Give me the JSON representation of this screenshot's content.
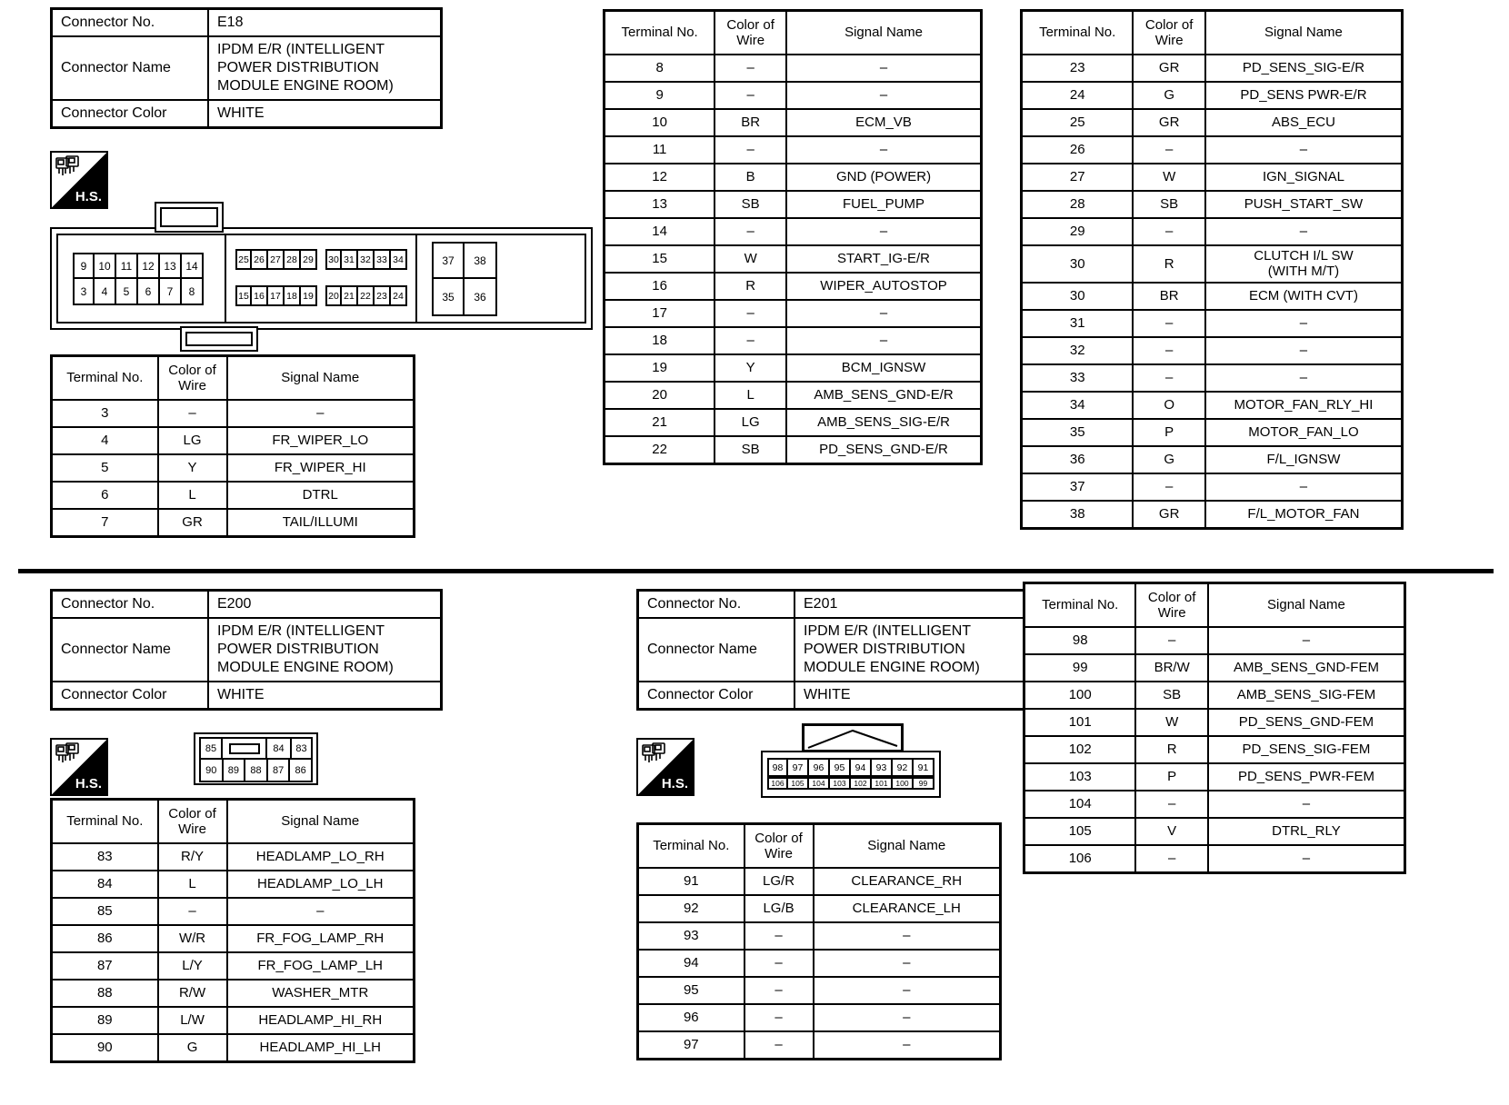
{
  "hs_label": "H.S.",
  "e18": {
    "info": [
      {
        "label": "Connector No.",
        "value": "E18"
      },
      {
        "label": "Connector Name",
        "value": "IPDM E/R (INTELLIGENT\nPOWER DISTRIBUTION\nMODULE ENGINE ROOM)"
      },
      {
        "label": "Connector Color",
        "value": "WHITE"
      }
    ],
    "pins": {
      "left_row1": [
        "9",
        "10",
        "11",
        "12",
        "13",
        "14"
      ],
      "left_row2": [
        "3",
        "4",
        "5",
        "6",
        "7",
        "8"
      ],
      "mid_top_a": [
        "25",
        "26",
        "27",
        "28",
        "29"
      ],
      "mid_top_b": [
        "30",
        "31",
        "32",
        "33",
        "34"
      ],
      "mid_bot_a": [
        "15",
        "16",
        "17",
        "18",
        "19"
      ],
      "mid_bot_b": [
        "20",
        "21",
        "22",
        "23",
        "24"
      ],
      "right_row1": [
        "37",
        "38"
      ],
      "right_row2": [
        "35",
        "36"
      ]
    },
    "table1": {
      "header": [
        "Terminal No.",
        "Color of\nWire",
        "Signal Name"
      ],
      "rows": [
        [
          "3",
          "–",
          "–"
        ],
        [
          "4",
          "LG",
          "FR_WIPER_LO"
        ],
        [
          "5",
          "Y",
          "FR_WIPER_HI"
        ],
        [
          "6",
          "L",
          "DTRL"
        ],
        [
          "7",
          "GR",
          "TAIL/ILLUMI"
        ]
      ]
    },
    "table2": {
      "header": [
        "Terminal No.",
        "Color of\nWire",
        "Signal Name"
      ],
      "rows": [
        [
          "8",
          "–",
          "–"
        ],
        [
          "9",
          "–",
          "–"
        ],
        [
          "10",
          "BR",
          "ECM_VB"
        ],
        [
          "11",
          "–",
          "–"
        ],
        [
          "12",
          "B",
          "GND (POWER)"
        ],
        [
          "13",
          "SB",
          "FUEL_PUMP"
        ],
        [
          "14",
          "–",
          "–"
        ],
        [
          "15",
          "W",
          "START_IG-E/R"
        ],
        [
          "16",
          "R",
          "WIPER_AUTOSTOP"
        ],
        [
          "17",
          "–",
          "–"
        ],
        [
          "18",
          "–",
          "–"
        ],
        [
          "19",
          "Y",
          "BCM_IGNSW"
        ],
        [
          "20",
          "L",
          "AMB_SENS_GND-E/R"
        ],
        [
          "21",
          "LG",
          "AMB_SENS_SIG-E/R"
        ],
        [
          "22",
          "SB",
          "PD_SENS_GND-E/R"
        ]
      ]
    },
    "table3": {
      "header": [
        "Terminal No.",
        "Color of\nWire",
        "Signal Name"
      ],
      "rows": [
        [
          "23",
          "GR",
          "PD_SENS_SIG-E/R"
        ],
        [
          "24",
          "G",
          "PD_SENS PWR-E/R"
        ],
        [
          "25",
          "GR",
          "ABS_ECU"
        ],
        [
          "26",
          "–",
          "–"
        ],
        [
          "27",
          "W",
          "IGN_SIGNAL"
        ],
        [
          "28",
          "SB",
          "PUSH_START_SW"
        ],
        [
          "29",
          "–",
          "–"
        ],
        [
          "30",
          "R",
          "CLUTCH I/L SW\n(WITH M/T)"
        ],
        [
          "30",
          "BR",
          "ECM (WITH CVT)"
        ],
        [
          "31",
          "–",
          "–"
        ],
        [
          "32",
          "–",
          "–"
        ],
        [
          "33",
          "–",
          "–"
        ],
        [
          "34",
          "O",
          "MOTOR_FAN_RLY_HI"
        ],
        [
          "35",
          "P",
          "MOTOR_FAN_LO"
        ],
        [
          "36",
          "G",
          "F/L_IGNSW"
        ],
        [
          "37",
          "–",
          "–"
        ],
        [
          "38",
          "GR",
          "F/L_MOTOR_FAN"
        ]
      ]
    }
  },
  "e200": {
    "info": [
      {
        "label": "Connector No.",
        "value": "E200"
      },
      {
        "label": "Connector Name",
        "value": "IPDM E/R (INTELLIGENT\nPOWER DISTRIBUTION\nMODULE ENGINE ROOM)"
      },
      {
        "label": "Connector Color",
        "value": "WHITE"
      }
    ],
    "pins": {
      "row1": [
        "85",
        "84",
        "83"
      ],
      "row2": [
        "90",
        "89",
        "88",
        "87",
        "86"
      ]
    },
    "table": {
      "header": [
        "Terminal No.",
        "Color of\nWire",
        "Signal Name"
      ],
      "rows": [
        [
          "83",
          "R/Y",
          "HEADLAMP_LO_RH"
        ],
        [
          "84",
          "L",
          "HEADLAMP_LO_LH"
        ],
        [
          "85",
          "–",
          "–"
        ],
        [
          "86",
          "W/R",
          "FR_FOG_LAMP_RH"
        ],
        [
          "87",
          "L/Y",
          "FR_FOG_LAMP_LH"
        ],
        [
          "88",
          "R/W",
          "WASHER_MTR"
        ],
        [
          "89",
          "L/W",
          "HEADLAMP_HI_RH"
        ],
        [
          "90",
          "G",
          "HEADLAMP_HI_LH"
        ]
      ]
    }
  },
  "e201": {
    "info": [
      {
        "label": "Connector No.",
        "value": "E201"
      },
      {
        "label": "Connector Name",
        "value": "IPDM E/R (INTELLIGENT\nPOWER DISTRIBUTION\nMODULE ENGINE ROOM)"
      },
      {
        "label": "Connector Color",
        "value": "WHITE"
      }
    ],
    "pins": {
      "row1": [
        "98",
        "97",
        "96",
        "95",
        "94",
        "93",
        "92",
        "91"
      ],
      "row2": [
        "106",
        "105",
        "104",
        "103",
        "102",
        "101",
        "100",
        "99"
      ]
    },
    "table": {
      "header": [
        "Terminal No.",
        "Color of\nWire",
        "Signal Name"
      ],
      "rows": [
        [
          "91",
          "LG/R",
          "CLEARANCE_RH"
        ],
        [
          "92",
          "LG/B",
          "CLEARANCE_LH"
        ],
        [
          "93",
          "–",
          "–"
        ],
        [
          "94",
          "–",
          "–"
        ],
        [
          "95",
          "–",
          "–"
        ],
        [
          "96",
          "–",
          "–"
        ],
        [
          "97",
          "–",
          "–"
        ]
      ]
    },
    "table2": {
      "header": [
        "Terminal No.",
        "Color of\nWire",
        "Signal Name"
      ],
      "rows": [
        [
          "98",
          "–",
          "–"
        ],
        [
          "99",
          "BR/W",
          "AMB_SENS_GND-FEM"
        ],
        [
          "100",
          "SB",
          "AMB_SENS_SIG-FEM"
        ],
        [
          "101",
          "W",
          "PD_SENS_GND-FEM"
        ],
        [
          "102",
          "R",
          "PD_SENS_SIG-FEM"
        ],
        [
          "103",
          "P",
          "PD_SENS_PWR-FEM"
        ],
        [
          "104",
          "–",
          "–"
        ],
        [
          "105",
          "V",
          "DTRL_RLY"
        ],
        [
          "106",
          "–",
          "–"
        ]
      ]
    }
  }
}
